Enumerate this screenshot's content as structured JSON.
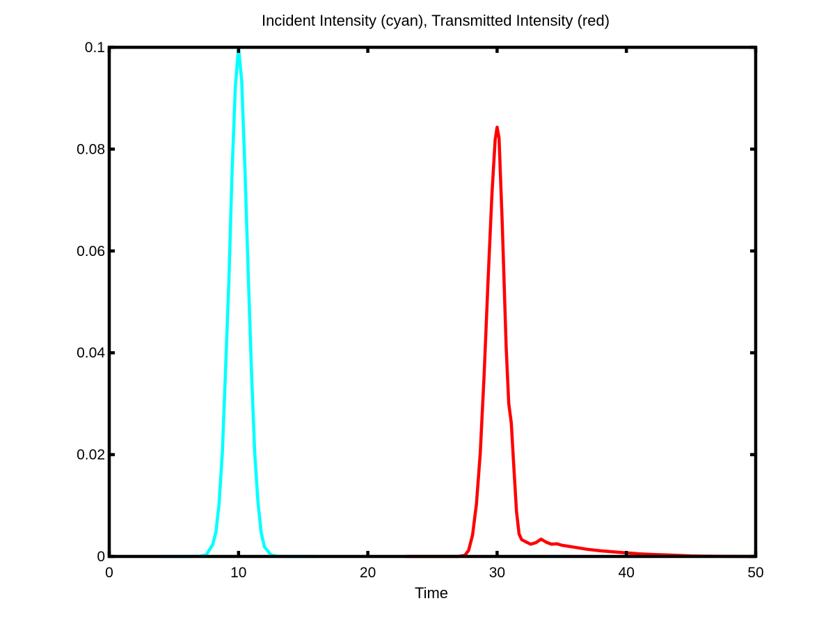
{
  "chart_data": {
    "type": "line",
    "title": "Incident Intensity (cyan), Transmitted Intensity (red)",
    "xlabel": "Time",
    "ylabel": "",
    "xlim": [
      0,
      50
    ],
    "ylim": [
      0,
      0.1
    ],
    "xticks": [
      0,
      10,
      20,
      30,
      40,
      50
    ],
    "xtick_labels": [
      "0",
      "10",
      "20",
      "30",
      "40",
      "50"
    ],
    "yticks": [
      0,
      0.02,
      0.04,
      0.06,
      0.08,
      0.1
    ],
    "ytick_labels": [
      "0",
      "0.02",
      "0.04",
      "0.06",
      "0.08",
      "0.1"
    ],
    "grid": false,
    "legend": "none",
    "series": [
      {
        "color": "#00ffff",
        "x": [
          4,
          5,
          6,
          7,
          7.5,
          8,
          8.25,
          8.5,
          8.75,
          9,
          9.25,
          9.5,
          9.75,
          10,
          10.25,
          10.5,
          10.75,
          11,
          11.25,
          11.5,
          11.75,
          12,
          12.5,
          13,
          14,
          15,
          16
        ],
        "y": [
          0,
          0,
          0,
          5e-05,
          0.0003,
          0.0023,
          0.0048,
          0.0104,
          0.0205,
          0.0368,
          0.0539,
          0.0755,
          0.0922,
          0.1,
          0.0933,
          0.0758,
          0.0557,
          0.0364,
          0.0205,
          0.0107,
          0.0047,
          0.0019,
          0.0003,
          3e-05,
          0,
          0,
          0
        ]
      },
      {
        "color": "#ff0000",
        "x": [
          23,
          25,
          27,
          27.5,
          27.8,
          28.1,
          28.4,
          28.7,
          29.0,
          29.3,
          29.6,
          29.85,
          30.0,
          30.15,
          30.4,
          30.7,
          30.9,
          31.1,
          31.3,
          31.5,
          31.7,
          31.9,
          32.2,
          32.6,
          33.0,
          33.4,
          33.8,
          34.2,
          34.6,
          35,
          36,
          37,
          38,
          39,
          40,
          41,
          42,
          43,
          44,
          45,
          46,
          48,
          50
        ],
        "y": [
          0,
          0,
          0,
          0.0002,
          0.0012,
          0.0042,
          0.0103,
          0.0203,
          0.0358,
          0.0542,
          0.0712,
          0.0818,
          0.0843,
          0.0822,
          0.0654,
          0.0412,
          0.0301,
          0.0262,
          0.0172,
          0.0088,
          0.0044,
          0.0033,
          0.0029,
          0.0024,
          0.0027,
          0.0034,
          0.0028,
          0.0024,
          0.0025,
          0.0022,
          0.0018,
          0.0014,
          0.0011,
          0.0009,
          0.0007,
          0.0005,
          0.0004,
          0.0003,
          0.0002,
          0.0001,
          5e-05,
          2e-05,
          0
        ]
      }
    ]
  }
}
